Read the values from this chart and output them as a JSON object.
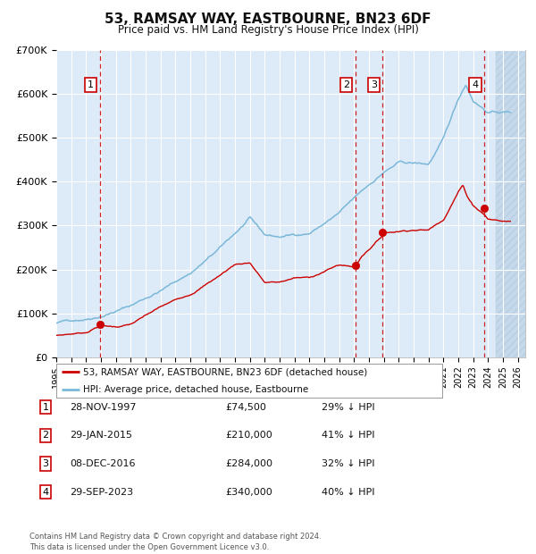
{
  "title": "53, RAMSAY WAY, EASTBOURNE, BN23 6DF",
  "subtitle": "Price paid vs. HM Land Registry's House Price Index (HPI)",
  "legend_entries": [
    "53, RAMSAY WAY, EASTBOURNE, BN23 6DF (detached house)",
    "HPI: Average price, detached house, Eastbourne"
  ],
  "sales": [
    {
      "num": 1,
      "date_x": 1997.91,
      "price": 74500
    },
    {
      "num": 2,
      "date_x": 2015.08,
      "price": 210000
    },
    {
      "num": 3,
      "date_x": 2016.93,
      "price": 284000
    },
    {
      "num": 4,
      "date_x": 2023.75,
      "price": 340000
    }
  ],
  "table_rows": [
    {
      "num": 1,
      "date": "28-NOV-1997",
      "price": "£74,500",
      "pct": "29% ↓ HPI"
    },
    {
      "num": 2,
      "date": "29-JAN-2015",
      "price": "£210,000",
      "pct": "41% ↓ HPI"
    },
    {
      "num": 3,
      "date": "08-DEC-2016",
      "price": "£284,000",
      "pct": "32% ↓ HPI"
    },
    {
      "num": 4,
      "date": "29-SEP-2023",
      "price": "£340,000",
      "pct": "40% ↓ HPI"
    }
  ],
  "footer": "Contains HM Land Registry data © Crown copyright and database right 2024.\nThis data is licensed under the Open Government Licence v3.0.",
  "hpi_color": "#7ab8d9",
  "price_color": "#cc0000",
  "vline_color": "#cc0000",
  "bg_color": "#ddeaf7",
  "grid_color": "#ffffff",
  "ylim": [
    0,
    700000
  ],
  "xlim_start": 1995.0,
  "xlim_end": 2026.5,
  "future_cutoff": 2024.5,
  "yticks": [
    0,
    100000,
    200000,
    300000,
    400000,
    500000,
    600000,
    700000
  ],
  "ytick_labels": [
    "£0",
    "£100K",
    "£200K",
    "£300K",
    "£400K",
    "£500K",
    "£600K",
    "£700K"
  ],
  "xticks": [
    1995,
    1996,
    1997,
    1998,
    1999,
    2000,
    2001,
    2002,
    2003,
    2004,
    2005,
    2006,
    2007,
    2008,
    2009,
    2010,
    2011,
    2012,
    2013,
    2014,
    2015,
    2016,
    2017,
    2018,
    2019,
    2020,
    2021,
    2022,
    2023,
    2024,
    2025,
    2026
  ]
}
